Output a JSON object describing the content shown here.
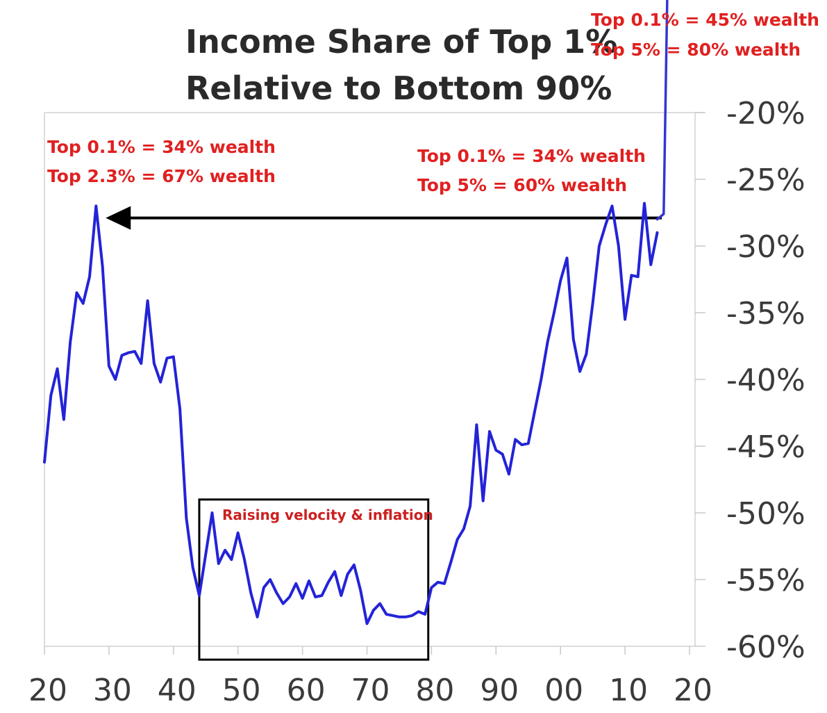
{
  "chart_data": {
    "type": "line",
    "title_lines": [
      "Income Share of Top 1%",
      "Relative to Bottom 90%"
    ],
    "x_ticks": [
      "20",
      "30",
      "40",
      "50",
      "60",
      "70",
      "80",
      "90",
      "00",
      "10",
      "20"
    ],
    "y_ticks": [
      "-20%",
      "-25%",
      "-30%",
      "-35%",
      "-40%",
      "-45%",
      "-50%",
      "-55%",
      "-60%"
    ],
    "xlim": [
      1920,
      2020
    ],
    "ylim": [
      -60,
      -20
    ],
    "grid": false,
    "series": [
      {
        "color": "#2323d8",
        "x": [
          1920,
          1921,
          1922,
          1923,
          1924,
          1925,
          1926,
          1927,
          1928,
          1929,
          1930,
          1931,
          1932,
          1933,
          1934,
          1935,
          1936,
          1937,
          1938,
          1939,
          1940,
          1941,
          1942,
          1943,
          1944,
          1945,
          1946,
          1947,
          1948,
          1949,
          1950,
          1951,
          1952,
          1953,
          1954,
          1955,
          1956,
          1957,
          1958,
          1959,
          1960,
          1961,
          1962,
          1963,
          1964,
          1965,
          1966,
          1967,
          1968,
          1969,
          1970,
          1971,
          1972,
          1973,
          1974,
          1975,
          1976,
          1977,
          1978,
          1979,
          1980,
          1981,
          1982,
          1983,
          1984,
          1985,
          1986,
          1987,
          1988,
          1989,
          1990,
          1991,
          1992,
          1993,
          1994,
          1995,
          1996,
          1997,
          1998,
          1999,
          2000,
          2001,
          2002,
          2003,
          2004,
          2005,
          2006,
          2007,
          2008,
          2009,
          2010,
          2011,
          2012,
          2013,
          2014,
          2015
        ],
        "y": [
          -46.2,
          -41.2,
          -39.2,
          -43.0,
          -37.2,
          -33.5,
          -34.3,
          -32.3,
          -27.0,
          -31.5,
          -39.0,
          -40.0,
          -38.2,
          -38.0,
          -37.9,
          -38.8,
          -34.1,
          -38.8,
          -40.2,
          -38.4,
          -38.3,
          -42.2,
          -50.4,
          -54.1,
          -56.2,
          -53.1,
          -50.0,
          -53.8,
          -52.8,
          -53.5,
          -51.5,
          -53.5,
          -56.0,
          -57.8,
          -55.6,
          -55.0,
          -56.0,
          -56.8,
          -56.3,
          -55.3,
          -56.4,
          -55.1,
          -56.3,
          -56.2,
          -55.2,
          -54.4,
          -56.2,
          -54.6,
          -53.9,
          -55.8,
          -58.3,
          -57.3,
          -56.8,
          -57.6,
          -57.7,
          -57.8,
          -57.8,
          -57.7,
          -57.4,
          -57.6,
          -55.6,
          -55.2,
          -55.3,
          -53.7,
          -52.0,
          -51.2,
          -49.5,
          -43.4,
          -49.1,
          -43.9,
          -45.3,
          -45.6,
          -47.1,
          -44.5,
          -44.9,
          -44.8,
          -42.4,
          -40.0,
          -37.2,
          -35.0,
          -32.6,
          -30.9,
          -37.0,
          -39.4,
          -38.1,
          -34.3,
          -30.0,
          -28.4,
          -27.0,
          -30.0,
          -35.5,
          -32.2,
          -32.3,
          -26.8,
          -31.4,
          -29.0
        ]
      },
      {
        "color": "#3535d0",
        "x": [
          2015,
          2016,
          2017
        ],
        "y": [
          -28.0,
          -27.6,
          2.0
        ]
      }
    ],
    "annotations": [
      {
        "lines": [
          "Top 0.1% = 45% wealth",
          "Top 5% = 80% wealth"
        ],
        "color": "#e02020"
      },
      {
        "lines": [
          "Top 0.1% = 34% wealth",
          "Top 2.3% = 67% wealth"
        ],
        "color": "#e02020"
      },
      {
        "lines": [
          "Top 0.1% = 34% wealth",
          "Top 5% = 60% wealth"
        ],
        "color": "#e02020"
      },
      {
        "lines": [
          "Raising velocity & inflation"
        ],
        "color": "#cc2020"
      }
    ],
    "highlight_box": {
      "x_range": [
        1944,
        1979.5
      ],
      "y_range": [
        -61,
        -49
      ]
    },
    "arrow": {
      "from_x": 2015.7,
      "to_x": 1929.5,
      "y": -27.9,
      "color": "#000000"
    }
  }
}
